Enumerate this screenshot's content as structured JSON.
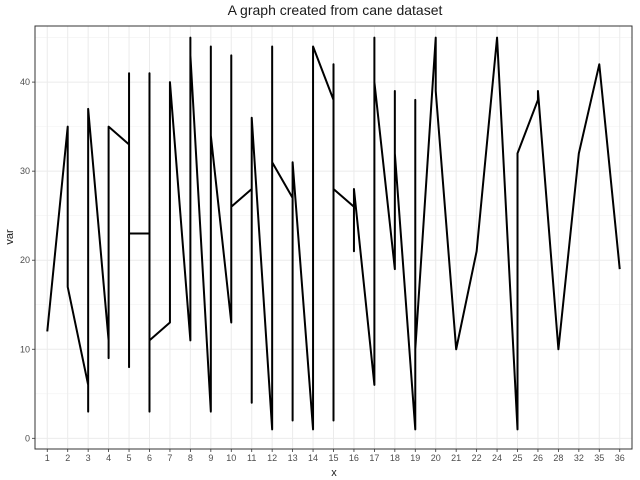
{
  "chart_data": {
    "type": "line",
    "title": "A graph created from cane dataset",
    "xlabel": "x",
    "ylabel": "var",
    "categories": [
      "1",
      "2",
      "3",
      "4",
      "5",
      "6",
      "7",
      "8",
      "9",
      "10",
      "11",
      "12",
      "13",
      "14",
      "15",
      "16",
      "17",
      "18",
      "19",
      "20",
      "21",
      "22",
      "24",
      "25",
      "26",
      "28",
      "32",
      "35",
      "36"
    ],
    "yticks": [
      0,
      10,
      20,
      30,
      40
    ],
    "ylim": [
      -1.2,
      46.3
    ],
    "grid": true,
    "line_color": "#000000",
    "series": [
      {
        "points": [
          [
            1,
            12
          ],
          [
            2,
            35
          ],
          [
            2,
            17
          ],
          [
            3,
            6
          ],
          [
            3,
            3
          ],
          [
            3,
            37
          ],
          [
            4,
            11
          ],
          [
            4,
            9
          ],
          [
            4,
            35
          ],
          [
            5,
            33
          ],
          [
            5,
            41
          ],
          [
            5,
            8
          ],
          [
            5,
            23
          ],
          [
            6,
            23
          ],
          [
            6,
            3
          ],
          [
            6,
            41
          ],
          [
            6,
            11
          ],
          [
            7,
            13
          ],
          [
            7,
            40
          ],
          [
            8,
            11
          ],
          [
            8,
            45
          ],
          [
            8,
            43
          ],
          [
            9,
            3
          ],
          [
            9,
            44
          ],
          [
            9,
            34
          ],
          [
            10,
            13
          ],
          [
            10,
            43
          ],
          [
            10,
            26
          ],
          [
            11,
            28
          ],
          [
            11,
            4
          ],
          [
            11,
            36
          ],
          [
            12,
            1
          ],
          [
            12,
            44
          ],
          [
            12,
            31
          ],
          [
            13,
            27
          ],
          [
            13,
            2
          ],
          [
            13,
            31
          ],
          [
            14,
            1
          ],
          [
            14,
            44
          ],
          [
            15,
            38
          ],
          [
            15,
            2
          ],
          [
            15,
            42
          ],
          [
            15,
            28
          ],
          [
            16,
            26
          ],
          [
            16,
            21
          ],
          [
            16,
            28
          ],
          [
            17,
            6
          ],
          [
            17,
            45
          ],
          [
            17,
            40
          ],
          [
            18,
            19
          ],
          [
            18,
            39
          ],
          [
            18,
            32
          ],
          [
            19,
            1
          ],
          [
            19,
            38
          ],
          [
            19,
            10
          ],
          [
            20,
            45
          ],
          [
            20,
            39
          ],
          [
            21,
            10
          ],
          [
            22,
            21
          ],
          [
            24,
            45
          ],
          [
            25,
            1
          ],
          [
            25,
            32
          ],
          [
            26,
            38
          ],
          [
            26,
            39
          ],
          [
            28,
            10
          ],
          [
            32,
            32
          ],
          [
            35,
            42
          ],
          [
            36,
            19
          ]
        ]
      }
    ]
  }
}
